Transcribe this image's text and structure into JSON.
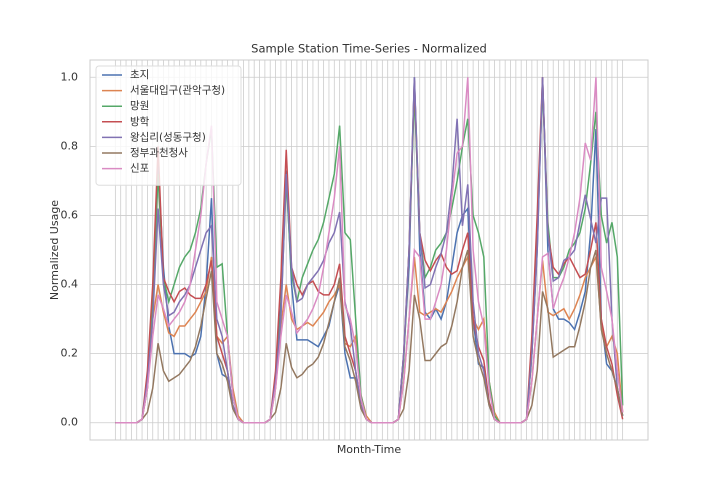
{
  "chart_data": {
    "type": "line",
    "title": "Sample Station Time-Series - Normalized",
    "xlabel": "Month-Time",
    "ylabel": "Normalized Usage",
    "categories": [
      null,
      null,
      null,
      null,
      null,
      null,
      null,
      null,
      null,
      null,
      null,
      null,
      null,
      null,
      null,
      null,
      null,
      null,
      null,
      null,
      null,
      null,
      null,
      null,
      null,
      null,
      null,
      null,
      null,
      null,
      null,
      null,
      null,
      null,
      null,
      null,
      null,
      null,
      null,
      null,
      null,
      null,
      null,
      null,
      null,
      null,
      null,
      null,
      null,
      null,
      null,
      null,
      null,
      null,
      null,
      null,
      null,
      null,
      null,
      null,
      null,
      null,
      null,
      null,
      null,
      null,
      null,
      null,
      null,
      null,
      null,
      null,
      null,
      null,
      null,
      null,
      null,
      null,
      null,
      null,
      null,
      null,
      null,
      null,
      null,
      null,
      null,
      null,
      null,
      null,
      null,
      null,
      null,
      null,
      null,
      null
    ],
    "ylim": [
      -0.05,
      1.05
    ],
    "yticks": [
      {
        "value": 0,
        "label": "0.0"
      },
      0.2,
      0.4,
      0.6,
      0.8,
      {
        "value": 1,
        "label": "1.0"
      }
    ],
    "grid": true,
    "legend": "upper left",
    "series": [
      {
        "name": "초지",
        "color": "#4c72b0",
        "values": [
          0,
          0,
          0,
          0,
          0,
          0.01,
          0.1,
          0.33,
          0.75,
          0.45,
          0.28,
          0.2,
          0.2,
          0.2,
          0.19,
          0.2,
          0.25,
          0.4,
          0.65,
          0.2,
          0.14,
          0.13,
          0.05,
          0.01,
          0,
          0,
          0,
          0,
          0,
          0.01,
          0.12,
          0.35,
          0.73,
          0.4,
          0.24,
          0.24,
          0.24,
          0.23,
          0.22,
          0.25,
          0.28,
          0.35,
          0.4,
          0.2,
          0.13,
          0.13,
          0.05,
          0.01,
          0,
          0,
          0,
          0,
          0,
          0.01,
          0.2,
          0.45,
          1.0,
          0.5,
          0.32,
          0.3,
          0.33,
          0.3,
          0.35,
          0.45,
          0.55,
          0.6,
          0.62,
          0.3,
          0.17,
          0.16,
          0.06,
          0.01,
          0,
          0,
          0,
          0,
          0,
          0.01,
          0.2,
          0.5,
          1.0,
          0.5,
          0.33,
          0.3,
          0.3,
          0.29,
          0.27,
          0.32,
          0.38,
          0.55,
          0.85,
          0.3,
          0.17,
          0.15,
          0.1,
          0.02
        ]
      },
      {
        "name": "서울대입구(관악구청)",
        "color": "#dd8452",
        "values": [
          0,
          0,
          0,
          0,
          0,
          0.01,
          0.1,
          0.3,
          0.4,
          0.32,
          0.26,
          0.25,
          0.28,
          0.28,
          0.3,
          0.32,
          0.35,
          0.38,
          0.48,
          0.25,
          0.23,
          0.25,
          0.1,
          0.02,
          0,
          0,
          0,
          0,
          0,
          0.01,
          0.1,
          0.28,
          0.4,
          0.3,
          0.27,
          0.28,
          0.29,
          0.28,
          0.3,
          0.32,
          0.35,
          0.37,
          0.4,
          0.23,
          0.22,
          0.25,
          0.08,
          0.02,
          0,
          0,
          0,
          0,
          0,
          0.01,
          0.12,
          0.3,
          0.48,
          0.32,
          0.31,
          0.32,
          0.33,
          0.32,
          0.35,
          0.38,
          0.42,
          0.45,
          0.48,
          0.3,
          0.27,
          0.3,
          0.12,
          0.03,
          0,
          0,
          0,
          0,
          0,
          0.01,
          0.12,
          0.3,
          0.47,
          0.32,
          0.31,
          0.32,
          0.33,
          0.3,
          0.33,
          0.37,
          0.42,
          0.45,
          0.48,
          0.28,
          0.22,
          0.25,
          0.2,
          0.03
        ]
      },
      {
        "name": "망원",
        "color": "#55a868",
        "values": [
          0,
          0,
          0,
          0,
          0,
          0.01,
          0.12,
          0.35,
          0.72,
          0.42,
          0.35,
          0.4,
          0.45,
          0.48,
          0.5,
          0.55,
          0.62,
          0.75,
          0.85,
          0.45,
          0.46,
          0.25,
          0.08,
          0.01,
          0,
          0,
          0,
          0,
          0,
          0.01,
          0.12,
          0.32,
          0.7,
          0.43,
          0.35,
          0.42,
          0.46,
          0.5,
          0.53,
          0.58,
          0.65,
          0.72,
          0.86,
          0.55,
          0.53,
          0.3,
          0.08,
          0.01,
          0,
          0,
          0,
          0,
          0,
          0.01,
          0.18,
          0.5,
          0.95,
          0.55,
          0.42,
          0.45,
          0.5,
          0.52,
          0.55,
          0.62,
          0.7,
          0.8,
          0.88,
          0.6,
          0.55,
          0.48,
          0.12,
          0.02,
          0,
          0,
          0,
          0,
          0,
          0.01,
          0.2,
          0.55,
          0.98,
          0.58,
          0.42,
          0.42,
          0.45,
          0.5,
          0.52,
          0.55,
          0.62,
          0.75,
          0.9,
          0.6,
          0.52,
          0.58,
          0.48,
          0.05
        ]
      },
      {
        "name": "방학",
        "color": "#c44e52",
        "values": [
          0,
          0,
          0,
          0,
          0,
          0.01,
          0.15,
          0.4,
          0.8,
          0.42,
          0.38,
          0.35,
          0.38,
          0.39,
          0.37,
          0.36,
          0.36,
          0.4,
          0.47,
          0.25,
          0.2,
          0.15,
          0.05,
          0.01,
          0,
          0,
          0,
          0,
          0,
          0.01,
          0.15,
          0.42,
          0.79,
          0.45,
          0.4,
          0.37,
          0.4,
          0.41,
          0.38,
          0.37,
          0.37,
          0.4,
          0.46,
          0.25,
          0.2,
          0.15,
          0.05,
          0.01,
          0,
          0,
          0,
          0,
          0,
          0.01,
          0.2,
          0.5,
          0.99,
          0.55,
          0.47,
          0.44,
          0.47,
          0.49,
          0.45,
          0.43,
          0.44,
          0.5,
          0.55,
          0.3,
          0.22,
          0.18,
          0.06,
          0.01,
          0,
          0,
          0,
          0,
          0,
          0.01,
          0.25,
          0.6,
          1.0,
          0.55,
          0.45,
          0.43,
          0.46,
          0.48,
          0.45,
          0.42,
          0.43,
          0.5,
          0.58,
          0.3,
          0.22,
          0.17,
          0.08,
          0.01
        ]
      },
      {
        "name": "왕십리(성동구청)",
        "color": "#8172b3",
        "values": [
          0,
          0,
          0,
          0,
          0,
          0.01,
          0.12,
          0.3,
          0.62,
          0.4,
          0.31,
          0.32,
          0.35,
          0.37,
          0.4,
          0.45,
          0.5,
          0.55,
          0.57,
          0.3,
          0.25,
          0.15,
          0.05,
          0.01,
          0,
          0,
          0,
          0,
          0,
          0.01,
          0.12,
          0.3,
          0.72,
          0.45,
          0.35,
          0.36,
          0.4,
          0.42,
          0.44,
          0.47,
          0.52,
          0.55,
          0.61,
          0.35,
          0.28,
          0.15,
          0.05,
          0.01,
          0,
          0,
          0,
          0,
          0,
          0.01,
          0.2,
          0.5,
          1.0,
          0.55,
          0.39,
          0.4,
          0.45,
          0.49,
          0.55,
          0.68,
          0.88,
          0.57,
          0.69,
          0.35,
          0.2,
          0.15,
          0.05,
          0.01,
          0,
          0,
          0,
          0,
          0,
          0.01,
          0.2,
          0.5,
          1.0,
          0.55,
          0.41,
          0.42,
          0.47,
          0.48,
          0.5,
          0.58,
          0.66,
          0.59,
          0.52,
          0.65,
          0.65,
          0.3,
          0.1,
          0.02
        ]
      },
      {
        "name": "정부과천청사",
        "color": "#937860",
        "values": [
          0,
          0,
          0,
          0,
          0,
          0.01,
          0.03,
          0.1,
          0.23,
          0.15,
          0.12,
          0.13,
          0.14,
          0.16,
          0.18,
          0.22,
          0.28,
          0.36,
          0.44,
          0.2,
          0.17,
          0.12,
          0.04,
          0.01,
          0,
          0,
          0,
          0,
          0,
          0.01,
          0.03,
          0.1,
          0.23,
          0.16,
          0.13,
          0.14,
          0.16,
          0.17,
          0.19,
          0.23,
          0.29,
          0.35,
          0.42,
          0.22,
          0.18,
          0.12,
          0.04,
          0.01,
          0,
          0,
          0,
          0,
          0,
          0.01,
          0.04,
          0.15,
          0.37,
          0.3,
          0.18,
          0.18,
          0.2,
          0.22,
          0.23,
          0.28,
          0.35,
          0.45,
          0.5,
          0.25,
          0.18,
          0.13,
          0.05,
          0.01,
          0,
          0,
          0,
          0,
          0,
          0.01,
          0.05,
          0.15,
          0.38,
          0.33,
          0.19,
          0.2,
          0.21,
          0.22,
          0.22,
          0.28,
          0.35,
          0.45,
          0.5,
          0.27,
          0.2,
          0.15,
          0.1,
          0.02
        ]
      },
      {
        "name": "신포",
        "color": "#da8bc3",
        "values": [
          0,
          0,
          0,
          0,
          0,
          0.01,
          0.1,
          0.25,
          0.37,
          0.33,
          0.28,
          0.3,
          0.32,
          0.35,
          0.4,
          0.5,
          0.6,
          0.75,
          0.86,
          0.35,
          0.3,
          0.25,
          0.08,
          0.01,
          0,
          0,
          0,
          0,
          0,
          0.01,
          0.1,
          0.25,
          0.37,
          0.32,
          0.26,
          0.28,
          0.3,
          0.33,
          0.37,
          0.45,
          0.55,
          0.65,
          0.8,
          0.34,
          0.3,
          0.22,
          0.07,
          0.01,
          0,
          0,
          0,
          0,
          0,
          0.01,
          0.12,
          0.3,
          0.5,
          0.48,
          0.3,
          0.3,
          0.35,
          0.4,
          0.5,
          0.65,
          0.78,
          0.8,
          1.0,
          0.5,
          0.35,
          0.28,
          0.1,
          0.01,
          0,
          0,
          0,
          0,
          0,
          0.01,
          0.12,
          0.3,
          0.48,
          0.49,
          0.33,
          0.38,
          0.42,
          0.48,
          0.55,
          0.65,
          0.81,
          0.76,
          1.0,
          0.45,
          0.38,
          0.3,
          0.15,
          0.03
        ]
      }
    ]
  }
}
